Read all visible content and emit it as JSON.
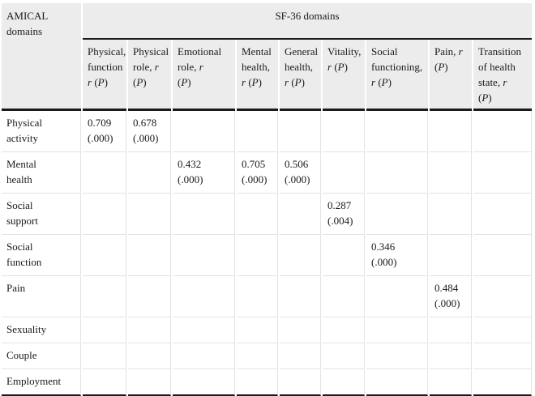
{
  "table": {
    "corner_header": "AMICAL\ndomains",
    "group_header": "SF-36 domains",
    "column_headers": [
      "Physical,\nfunction\nr (P)",
      "Physical\nrole, r\n(P)",
      "Emotional\nrole, r\n(P)",
      "Mental\nhealth,\nr (P)",
      "General\nhealth,\nr (P)",
      "Vitality,\nr (P)",
      "Social\nfunctioning,\nr (P)",
      "Pain, r\n(P)",
      "Transition\nof health\nstate, r\n(P)"
    ],
    "rows": [
      {
        "label": "Physical\nactivity",
        "values": [
          "0.709\n(.000)",
          "0.678\n(.000)",
          "",
          "",
          "",
          "",
          "",
          "",
          ""
        ]
      },
      {
        "label": "Mental\nhealth",
        "values": [
          "",
          "",
          "0.432\n(.000)",
          "0.705\n(.000)",
          "0.506\n(.000)",
          "",
          "",
          "",
          ""
        ]
      },
      {
        "label": "Social\nsupport",
        "values": [
          "",
          "",
          "",
          "",
          "",
          "0.287\n(.004)",
          "",
          "",
          ""
        ]
      },
      {
        "label": "Social\nfunction",
        "values": [
          "",
          "",
          "",
          "",
          "",
          "",
          "0.346\n(.000)",
          "",
          ""
        ]
      },
      {
        "label": "Pain",
        "values": [
          "",
          "",
          "",
          "",
          "",
          "",
          "",
          "0.484\n(.000)",
          ""
        ]
      },
      {
        "label": "Sexuality",
        "values": [
          "",
          "",
          "",
          "",
          "",
          "",
          "",
          "",
          ""
        ]
      },
      {
        "label": "Couple",
        "values": [
          "",
          "",
          "",
          "",
          "",
          "",
          "",
          "",
          ""
        ]
      },
      {
        "label": "Employment",
        "values": [
          "",
          "",
          "",
          "",
          "",
          "",
          "",
          "",
          ""
        ]
      }
    ]
  },
  "colors": {
    "header_bg": "#ececec",
    "grid_border": "#e3e3e3",
    "rule_dark": "#1b1b1b"
  }
}
